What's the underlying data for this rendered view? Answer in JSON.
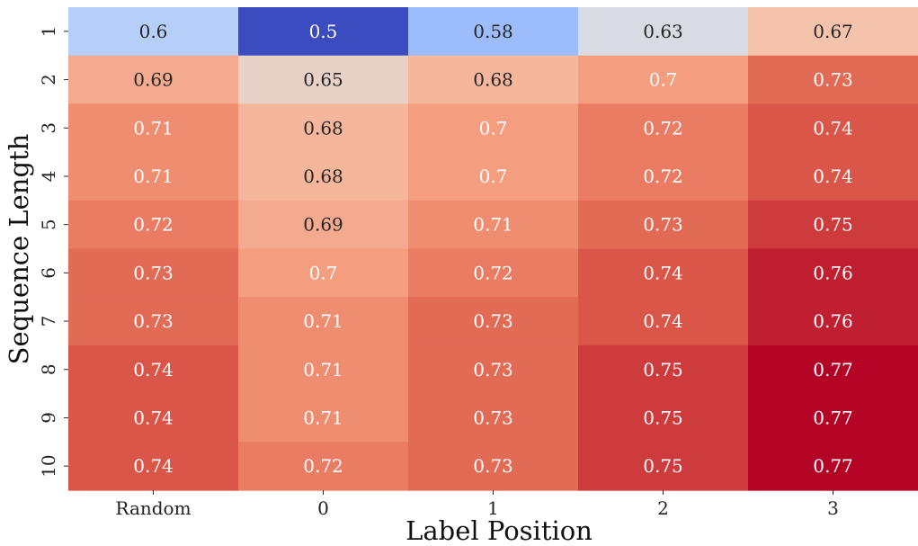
{
  "chart_data": {
    "type": "heatmap",
    "title": "",
    "xlabel": "Label Position",
    "ylabel": "Sequence Length",
    "x_categories": [
      "Random",
      "0",
      "1",
      "2",
      "3"
    ],
    "y_categories": [
      "1",
      "2",
      "3",
      "4",
      "5",
      "6",
      "7",
      "8",
      "9",
      "10"
    ],
    "values": [
      [
        0.6,
        0.5,
        0.58,
        0.63,
        0.67
      ],
      [
        0.69,
        0.65,
        0.68,
        0.7,
        0.73
      ],
      [
        0.71,
        0.68,
        0.7,
        0.72,
        0.74
      ],
      [
        0.71,
        0.68,
        0.7,
        0.72,
        0.74
      ],
      [
        0.72,
        0.69,
        0.71,
        0.73,
        0.75
      ],
      [
        0.73,
        0.7,
        0.72,
        0.74,
        0.76
      ],
      [
        0.73,
        0.71,
        0.73,
        0.74,
        0.76
      ],
      [
        0.74,
        0.71,
        0.73,
        0.75,
        0.77
      ],
      [
        0.74,
        0.71,
        0.73,
        0.75,
        0.77
      ],
      [
        0.74,
        0.72,
        0.73,
        0.75,
        0.77
      ]
    ],
    "colormap": "coolwarm",
    "color_range": [
      0.5,
      0.77
    ],
    "grid": false,
    "legend": "none",
    "colorbar": false,
    "annotations": "cell values"
  }
}
